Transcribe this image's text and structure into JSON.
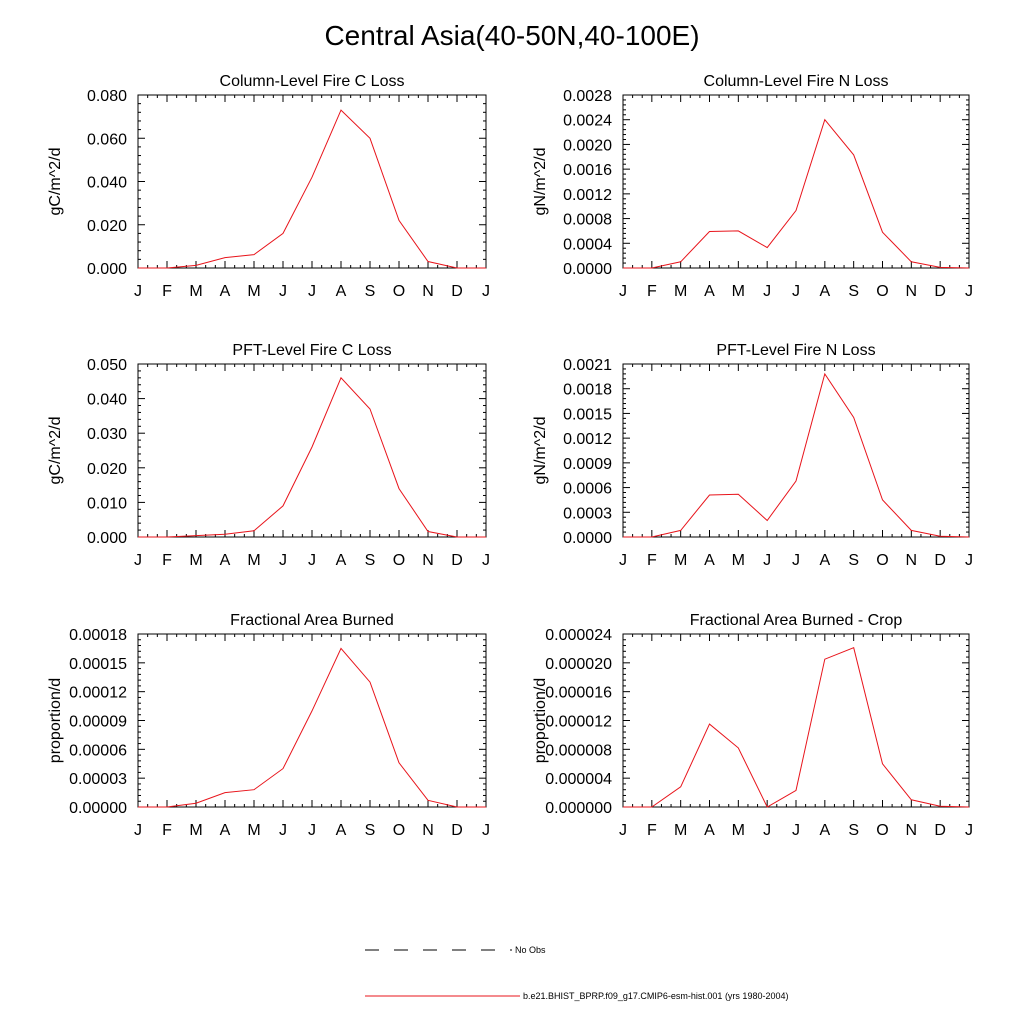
{
  "figure": {
    "title": "Central Asia(40-50N,40-100E)"
  },
  "chart_data": [
    {
      "type": "line",
      "title": "Column-Level Fire C Loss",
      "xlabel": "",
      "ylabel": "gC/m^2/d",
      "categories": [
        "J",
        "F",
        "M",
        "A",
        "M",
        "J",
        "J",
        "A",
        "S",
        "O",
        "N",
        "D",
        "J"
      ],
      "ylim": [
        0,
        0.08
      ],
      "yticks": [
        "0.000",
        "0.020",
        "0.040",
        "0.060",
        "0.080"
      ],
      "series": [
        {
          "color": "#e8141b",
          "values": [
            0,
            0,
            0.0012,
            0.0048,
            0.0062,
            0.016,
            0.042,
            0.073,
            0.06,
            0.022,
            0.003,
            0,
            0
          ]
        }
      ]
    },
    {
      "type": "line",
      "title": "Column-Level Fire N Loss",
      "xlabel": "",
      "ylabel": "gN/m^2/d",
      "categories": [
        "J",
        "F",
        "M",
        "A",
        "M",
        "J",
        "J",
        "A",
        "S",
        "O",
        "N",
        "D",
        "J"
      ],
      "ylim": [
        0,
        0.0028
      ],
      "yticks": [
        "0.0000",
        "0.0004",
        "0.0008",
        "0.0012",
        "0.0016",
        "0.0020",
        "0.0024",
        "0.0028"
      ],
      "series": [
        {
          "color": "#e8141b",
          "values": [
            0,
            0,
            0.0001,
            0.00059,
            0.0006,
            0.00033,
            0.00093,
            0.0024,
            0.00183,
            0.00058,
            0.0001,
            1e-05,
            0
          ]
        }
      ]
    },
    {
      "type": "line",
      "title": "PFT-Level Fire C Loss",
      "xlabel": "",
      "ylabel": "gC/m^2/d",
      "categories": [
        "J",
        "F",
        "M",
        "A",
        "M",
        "J",
        "J",
        "A",
        "S",
        "O",
        "N",
        "D",
        "J"
      ],
      "ylim": [
        0,
        0.05
      ],
      "yticks": [
        "0.000",
        "0.010",
        "0.020",
        "0.030",
        "0.040",
        "0.050"
      ],
      "series": [
        {
          "color": "#e8141b",
          "values": [
            0,
            0,
            0.0004,
            0.0008,
            0.0018,
            0.009,
            0.026,
            0.046,
            0.037,
            0.014,
            0.0016,
            0,
            0
          ]
        }
      ]
    },
    {
      "type": "line",
      "title": "PFT-Level Fire N Loss",
      "xlabel": "",
      "ylabel": "gN/m^2/d",
      "categories": [
        "J",
        "F",
        "M",
        "A",
        "M",
        "J",
        "J",
        "A",
        "S",
        "O",
        "N",
        "D",
        "J"
      ],
      "ylim": [
        0,
        0.0021
      ],
      "yticks": [
        "0.0000",
        "0.0003",
        "0.0006",
        "0.0009",
        "0.0012",
        "0.0015",
        "0.0018",
        "0.0021"
      ],
      "series": [
        {
          "color": "#e8141b",
          "values": [
            0,
            0,
            8e-05,
            0.00051,
            0.00052,
            0.0002,
            0.00068,
            0.00198,
            0.00145,
            0.00045,
            8e-05,
            1e-05,
            0
          ]
        }
      ]
    },
    {
      "type": "line",
      "title": "Fractional Area Burned",
      "xlabel": "",
      "ylabel": "proportion/d",
      "categories": [
        "J",
        "F",
        "M",
        "A",
        "M",
        "J",
        "J",
        "A",
        "S",
        "O",
        "N",
        "D",
        "J"
      ],
      "ylim": [
        0,
        0.00018
      ],
      "yticks": [
        "0.00000",
        "0.00003",
        "0.00006",
        "0.00009",
        "0.00012",
        "0.00015",
        "0.00018"
      ],
      "series": [
        {
          "color": "#e8141b",
          "values": [
            0,
            0,
            4e-06,
            1.5e-05,
            1.8e-05,
            4e-05,
            0.0001,
            0.000165,
            0.00013,
            4.6e-05,
            7e-06,
            0,
            0
          ]
        }
      ]
    },
    {
      "type": "line",
      "title": "Fractional Area Burned - Crop",
      "xlabel": "",
      "ylabel": "proportion/d",
      "categories": [
        "J",
        "F",
        "M",
        "A",
        "M",
        "J",
        "J",
        "A",
        "S",
        "O",
        "N",
        "D",
        "J"
      ],
      "ylim": [
        0,
        2.4e-05
      ],
      "yticks": [
        "0.000000",
        "0.000004",
        "0.000008",
        "0.000012",
        "0.000016",
        "0.000020",
        "0.000024"
      ],
      "series": [
        {
          "color": "#e8141b",
          "values": [
            0,
            0,
            2.8e-06,
            1.15e-05,
            8.2e-06,
            0,
            2.3e-06,
            2.05e-05,
            2.21e-05,
            6e-06,
            1e-06,
            1e-07,
            0
          ]
        }
      ]
    }
  ],
  "legend": {
    "placement": "bottom-center",
    "items": [
      {
        "label": "No Obs",
        "style": "dashed",
        "color": "#000000"
      },
      {
        "label": "b.e21.BHIST_BPRP.f09_g17.CMIP6-esm-hist.001 (yrs 1980-2004)",
        "style": "solid",
        "color": "#e8141b"
      }
    ]
  }
}
